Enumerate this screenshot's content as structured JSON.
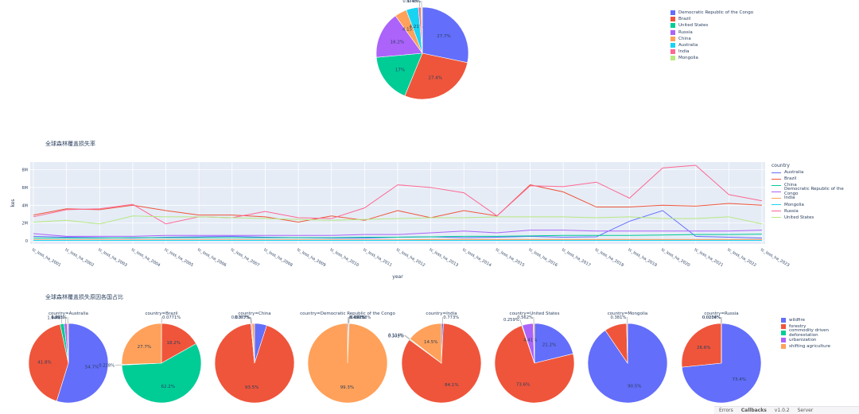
{
  "colors": {
    "blue": "#636efa",
    "red": "#ef553b",
    "green": "#00cc96",
    "purple": "#ab63fa",
    "orange": "#ffa15a",
    "cyan": "#19d3f3",
    "pink": "#ff6692",
    "lime": "#b6e880",
    "plotbg": "#e5ecf6",
    "grid": "#ffffff"
  },
  "top_legend": [
    {
      "label": "Democratic Republic of the Congo",
      "color": "#636efa"
    },
    {
      "label": "Brazil",
      "color": "#ef553b"
    },
    {
      "label": "United States",
      "color": "#00cc96"
    },
    {
      "label": "Russia",
      "color": "#ab63fa"
    },
    {
      "label": "China",
      "color": "#ffa15a"
    },
    {
      "label": "Australia",
      "color": "#19d3f3"
    },
    {
      "label": "India",
      "color": "#ff6692"
    },
    {
      "label": "Mongolia",
      "color": "#b6e880"
    }
  ],
  "line_section": {
    "title": "全球森林覆盖损失率",
    "legend_title": "country"
  },
  "small_section": {
    "title": "全球森林覆盖损失原因各国占比"
  },
  "small_legend": [
    {
      "label": "wildfire",
      "color": "#636efa"
    },
    {
      "label": "forestry",
      "color": "#ef553b"
    },
    {
      "label": "commodity driven deforestation",
      "color": "#00cc96"
    },
    {
      "label": "urbanization",
      "color": "#ab63fa"
    },
    {
      "label": "shifting agriculture",
      "color": "#ffa15a"
    }
  ],
  "devbar": {
    "errors": "Errors",
    "callbacks": "Callbacks",
    "version": "v1.0.2",
    "server": "Server"
  },
  "chart_data": [
    {
      "type": "pie",
      "labels": [
        "Democratic Republic of the Congo",
        "Brazil",
        "United States",
        "Russia",
        "China",
        "Australia",
        "India",
        "Mongolia"
      ],
      "values": [
        27.7,
        27.4,
        17,
        16.2,
        4.15,
        4.21,
        0.873,
        0.48
      ],
      "text_labels": [
        "27.7%",
        "27.4%",
        "17%",
        "16.2%",
        "4.15%",
        "4.21%",
        "0.873%",
        "0.48%"
      ],
      "colors": [
        "#636efa",
        "#ef553b",
        "#00cc96",
        "#ab63fa",
        "#ffa15a",
        "#19d3f3",
        "#ff6692",
        "#b6e880"
      ]
    },
    {
      "type": "line",
      "title": "全球森林覆盖损失率",
      "xlabel": "year",
      "ylabel": "kes",
      "yticks": [
        "0",
        "2M",
        "4M",
        "6M",
        "8M"
      ],
      "ylim": [
        0,
        8.5
      ],
      "x": [
        "tc_loss_ha_2001",
        "tc_loss_ha_2002",
        "tc_loss_ha_2003",
        "tc_loss_ha_2004",
        "tc_loss_ha_2005",
        "tc_loss_ha_2006",
        "tc_loss_ha_2007",
        "tc_loss_ha_2008",
        "tc_loss_ha_2009",
        "tc_loss_ha_2010",
        "tc_loss_ha_2011",
        "tc_loss_ha_2012",
        "tc_loss_ha_2013",
        "tc_loss_ha_2014",
        "tc_loss_ha_2015",
        "tc_loss_ha_2016",
        "tc_loss_ha_2017",
        "tc_loss_ha_2018",
        "tc_loss_ha_2019",
        "tc_loss_ha_2020",
        "tc_loss_ha_2021",
        "tc_loss_ha_2022",
        "tc_loss_ha_2023"
      ],
      "series": [
        {
          "name": "Australia",
          "color": "#636efa",
          "values": [
            0.5,
            0.4,
            0.35,
            0.3,
            0.4,
            0.45,
            0.5,
            0.4,
            0.35,
            0.3,
            0.3,
            0.4,
            0.45,
            0.35,
            0.4,
            0.5,
            0.4,
            0.45,
            2.2,
            3.4,
            0.5,
            0.4,
            0.3
          ]
        },
        {
          "name": "Brazil",
          "color": "#ef553b",
          "values": [
            2.9,
            3.6,
            3.5,
            4.0,
            3.4,
            2.9,
            2.9,
            2.7,
            2.1,
            2.8,
            2.3,
            3.4,
            2.6,
            3.4,
            2.8,
            6.3,
            5.5,
            3.8,
            3.8,
            4.0,
            3.9,
            4.2,
            4.0
          ]
        },
        {
          "name": "China",
          "color": "#00cc96",
          "values": [
            0.3,
            0.3,
            0.3,
            0.35,
            0.35,
            0.35,
            0.35,
            0.35,
            0.35,
            0.35,
            0.4,
            0.4,
            0.45,
            0.5,
            0.5,
            0.55,
            0.6,
            0.6,
            0.6,
            0.65,
            0.7,
            0.7,
            0.75
          ]
        },
        {
          "name": "Democratic Republic of the Congo",
          "color": "#ab63fa",
          "values": [
            0.8,
            0.5,
            0.5,
            0.5,
            0.6,
            0.6,
            0.6,
            0.6,
            0.6,
            0.6,
            0.7,
            0.7,
            0.9,
            1.1,
            0.9,
            1.2,
            1.2,
            1.1,
            1.1,
            1.1,
            1.1,
            1.1,
            1.2
          ]
        },
        {
          "name": "India",
          "color": "#ffa15a",
          "values": [
            0.1,
            0.1,
            0.1,
            0.1,
            0.1,
            0.1,
            0.1,
            0.1,
            0.1,
            0.1,
            0.1,
            0.1,
            0.15,
            0.15,
            0.15,
            0.15,
            0.15,
            0.15,
            0.15,
            0.15,
            0.15,
            0.15,
            0.15
          ]
        },
        {
          "name": "Mongolia",
          "color": "#19d3f3",
          "values": [
            0.05,
            0.05,
            0.05,
            0.05,
            0.05,
            0.05,
            0.05,
            0.05,
            0.05,
            0.05,
            0.05,
            0.05,
            0.05,
            0.05,
            0.05,
            0.05,
            0.05,
            0.05,
            0.05,
            0.05,
            0.05,
            0.05,
            0.05
          ]
        },
        {
          "name": "Russia",
          "color": "#ff6692",
          "values": [
            2.7,
            3.5,
            3.6,
            4.1,
            1.9,
            2.7,
            2.6,
            3.3,
            2.6,
            2.5,
            3.7,
            6.3,
            6.0,
            5.4,
            2.8,
            6.2,
            6.1,
            6.6,
            4.8,
            8.2,
            8.5,
            5.2,
            4.5
          ]
        },
        {
          "name": "United States",
          "color": "#b6e880",
          "values": [
            2.1,
            2.3,
            1.9,
            2.8,
            2.7,
            2.7,
            2.6,
            2.5,
            2.4,
            2.3,
            2.4,
            2.5,
            2.6,
            2.6,
            2.7,
            2.7,
            2.7,
            2.6,
            2.7,
            2.5,
            2.5,
            2.7,
            1.9
          ]
        }
      ]
    },
    {
      "type": "pie",
      "title": "country=Australia",
      "labels": [
        "wildfire",
        "forestry",
        "commodity driven deforestation",
        "urbanization",
        "shifting agriculture"
      ],
      "values": [
        54.7,
        41.8,
        1.64,
        1.22,
        0.491
      ],
      "text_labels": [
        "54.7%",
        "41.8%",
        "1.64%",
        "1.22%",
        "0.491%"
      ]
    },
    {
      "type": "pie",
      "title": "country=Brazil",
      "labels": [
        "wildfire",
        "forestry",
        "commodity driven deforestation",
        "urbanization",
        "shifting agriculture"
      ],
      "values": [
        0.0771,
        18.2,
        62.2,
        0.228,
        27.7
      ],
      "text_labels": [
        "0.0771%",
        "18.2%",
        "62.2%",
        "0.228%",
        "27.7%"
      ]
    },
    {
      "type": "pie",
      "title": "country=China",
      "labels": [
        "wildfire",
        "forestry",
        "commodity driven deforestation",
        "urbanization",
        "shifting agriculture"
      ],
      "values": [
        5.0,
        93.5,
        0.0763,
        0.377,
        1.0
      ],
      "text_labels": [
        "",
        "93.5%",
        "0.0763%",
        "0.377%",
        ""
      ]
    },
    {
      "type": "pie",
      "title": "country=Democratic Republic of the Congo",
      "labels": [
        "wildfire",
        "forestry",
        "commodity driven deforestation",
        "urbanization",
        "shifting agriculture"
      ],
      "values": [
        0.437,
        0.141,
        0.00208,
        0.0114,
        99.3
      ],
      "text_labels": [
        "0.437%",
        "0.141%",
        "0.00208%",
        "",
        "99.3%"
      ]
    },
    {
      "type": "pie",
      "title": "country=India",
      "labels": [
        "wildfire",
        "forestry",
        "commodity driven deforestation",
        "urbanization",
        "shifting agriculture"
      ],
      "values": [
        0.773,
        84.1,
        0.301,
        0.114,
        14.5
      ],
      "text_labels": [
        "0.773%",
        "84.1%",
        "0.301%",
        "0.114%",
        "14.5%"
      ]
    },
    {
      "type": "pie",
      "title": "country=United States",
      "labels": [
        "wildfire",
        "forestry",
        "commodity driven deforestation",
        "urbanization",
        "shifting agriculture"
      ],
      "values": [
        21.2,
        73.6,
        0.259,
        4.41,
        0.562
      ],
      "text_labels": [
        "21.2%",
        "73.6%",
        "0.259%",
        "4.41%",
        "0.562%"
      ]
    },
    {
      "type": "pie",
      "title": "country=Mongolia",
      "labels": [
        "wildfire",
        "forestry",
        "commodity driven deforestation",
        "urbanization",
        "shifting agriculture"
      ],
      "values": [
        90.5,
        9.1,
        0.0,
        0.0,
        0.381
      ],
      "text_labels": [
        "90.5%",
        "",
        "",
        "",
        "0.381%"
      ]
    },
    {
      "type": "pie",
      "title": "country=Russia",
      "labels": [
        "wildfire",
        "forestry",
        "commodity driven deforestation",
        "urbanization",
        "shifting agriculture"
      ],
      "values": [
        73.4,
        26.6,
        0.0234,
        0.0108,
        0.0
      ],
      "text_labels": [
        "73.4%",
        "26.6%",
        "0.0234%",
        "0.0108%",
        ""
      ]
    }
  ]
}
